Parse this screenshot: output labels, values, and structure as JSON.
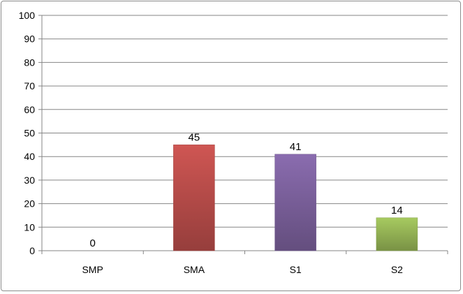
{
  "chart_data": {
    "type": "bar",
    "categories": [
      "SMP",
      "SMA",
      "S1",
      "S2"
    ],
    "values": [
      0,
      45,
      41,
      14
    ],
    "data_labels": [
      "0",
      "45",
      "41",
      "14"
    ],
    "title": "",
    "xlabel": "",
    "ylabel": "",
    "ylim": [
      0,
      100
    ],
    "yticks": [
      0,
      10,
      20,
      30,
      40,
      50,
      60,
      70,
      80,
      90,
      100
    ],
    "ytick_labels": [
      "0",
      "10",
      "20",
      "30",
      "40",
      "50",
      "60",
      "70",
      "80",
      "90",
      "100"
    ],
    "grid": true,
    "legend": "none",
    "colors": [
      "#4f81bd",
      "#c0504d",
      "#8064a2",
      "#9bbb59"
    ]
  }
}
